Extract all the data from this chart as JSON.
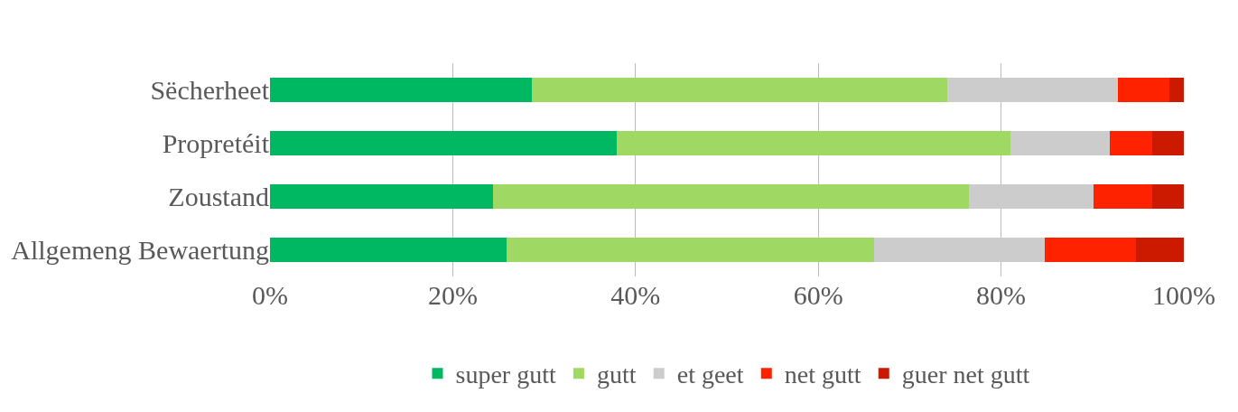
{
  "chart_data": {
    "type": "bar",
    "orientation": "horizontal",
    "stacked": true,
    "categories": [
      "Sëcherheet",
      "Propretéit",
      "Zoustand",
      "Allgemeng Bewaertung"
    ],
    "series": [
      {
        "name": "super gutt",
        "color": "#00b862",
        "values": [
          28.7,
          37.9,
          24.4,
          25.9
        ]
      },
      {
        "name": "gutt",
        "color": "#a0d864",
        "values": [
          45.4,
          43.1,
          52.1,
          40.2
        ]
      },
      {
        "name": "et geet",
        "color": "#cccccc",
        "values": [
          18.7,
          10.9,
          13.6,
          18.7
        ]
      },
      {
        "name": "net gutt",
        "color": "#ff2200",
        "values": [
          5.6,
          4.6,
          6.4,
          10.0
        ]
      },
      {
        "name": "guer net gutt",
        "color": "#cc1a00",
        "values": [
          1.6,
          3.5,
          3.5,
          5.2
        ]
      }
    ],
    "xlim": [
      0,
      100
    ],
    "xticks": [
      {
        "value": 0,
        "label": "0%"
      },
      {
        "value": 20,
        "label": "20%"
      },
      {
        "value": 40,
        "label": "40%"
      },
      {
        "value": 60,
        "label": "60%"
      },
      {
        "value": 80,
        "label": "80%"
      },
      {
        "value": 100,
        "label": "100%"
      }
    ],
    "grid": "x",
    "legend": "bottom"
  }
}
